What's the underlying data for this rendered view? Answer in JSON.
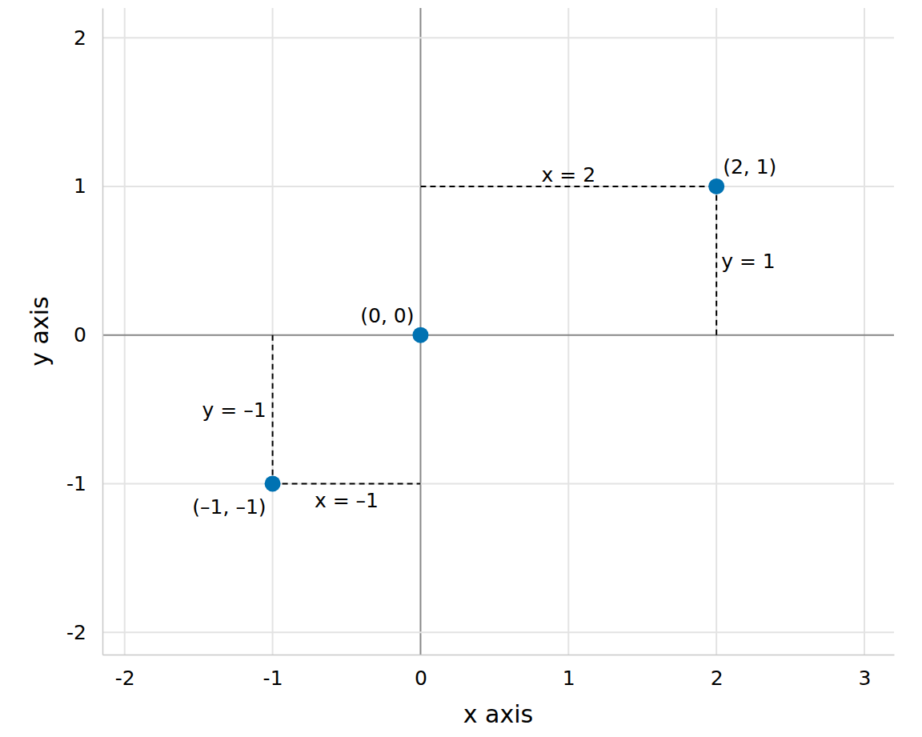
{
  "chart_data": {
    "type": "scatter",
    "x": [
      -1,
      0,
      2
    ],
    "values": [
      -1,
      0,
      1
    ],
    "point_labels": [
      "(–1, –1)",
      "(0, 0)",
      "(2, 1)"
    ],
    "color": "#0072b2",
    "marker": "circle",
    "xlabel": "x axis",
    "ylabel": "y axis",
    "xlim": [
      -2.15,
      3.2
    ],
    "ylim": [
      -2.15,
      2.2
    ],
    "xticks": [
      -2,
      -1,
      0,
      1,
      2,
      3
    ],
    "yticks": [
      -2,
      -1,
      0,
      1,
      2
    ],
    "grid": true,
    "annotations": [
      {
        "text": "x = 2",
        "x": [
          0,
          2
        ],
        "y": [
          1,
          1
        ],
        "line_style": "dashed"
      },
      {
        "text": "y = 1",
        "x": [
          2,
          2
        ],
        "y": [
          0,
          1
        ],
        "line_style": "dashed"
      },
      {
        "text": "y = –1",
        "x": [
          -1,
          -1
        ],
        "y": [
          0,
          -1
        ],
        "line_style": "dashed"
      },
      {
        "text": "x = –1",
        "x": [
          -1,
          0
        ],
        "y": [
          -1,
          -1
        ],
        "line_style": "dashed"
      }
    ]
  }
}
